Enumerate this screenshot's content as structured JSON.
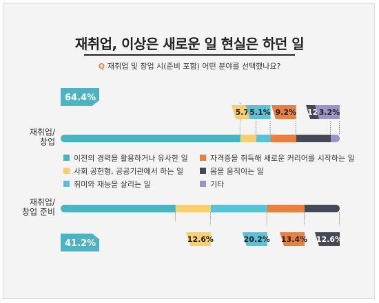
{
  "title": "재취업, 이상은 새로운 일 현실은 하던 일",
  "question": {
    "marker": "Q",
    "text": "재취업 및 창업 시(준비 포함) 어떤 분야를 선택했나요?"
  },
  "chart_data": {
    "type": "bar",
    "orientation": "horizontal-stacked",
    "title": "재취업, 이상은 새로운 일 현실은 하던 일",
    "categories": [
      "재취업/\n창업",
      "재취업/\n창업 준비"
    ],
    "series": [
      {
        "name": "이전의 경력을 활용하거나 유사한 일",
        "color": "#4bb3c1",
        "values": [
          64.4,
          41.2
        ]
      },
      {
        "name": "사회 공헌형, 공공기관에서 하는 일",
        "color": "#f5cf72",
        "values": [
          5.7,
          12.6
        ]
      },
      {
        "name": "취미와 재능을 살리는 일",
        "color": "#5cc0d6",
        "values": [
          5.1,
          20.2
        ]
      },
      {
        "name": "자격증을 취득해 새로운 커리어를 시작하는 일",
        "color": "#e8803f",
        "values": [
          9.2,
          13.4
        ]
      },
      {
        "name": "몸을 움직이는 일",
        "color": "#454956",
        "values": [
          12.4,
          12.6
        ]
      },
      {
        "name": "기타",
        "color": "#9d93c4",
        "values": [
          3.2,
          0
        ]
      }
    ],
    "labels": [
      [
        "64.4%",
        "5.7%",
        "5.1%",
        "9.2%",
        "12.4%",
        "3.2%"
      ],
      [
        "41.2%",
        "12.6%",
        "20.2%",
        "13.4%",
        "12.6%",
        ""
      ]
    ],
    "legend_layout": "2 columns between bars",
    "xlim": [
      0,
      100
    ],
    "grid": false
  }
}
